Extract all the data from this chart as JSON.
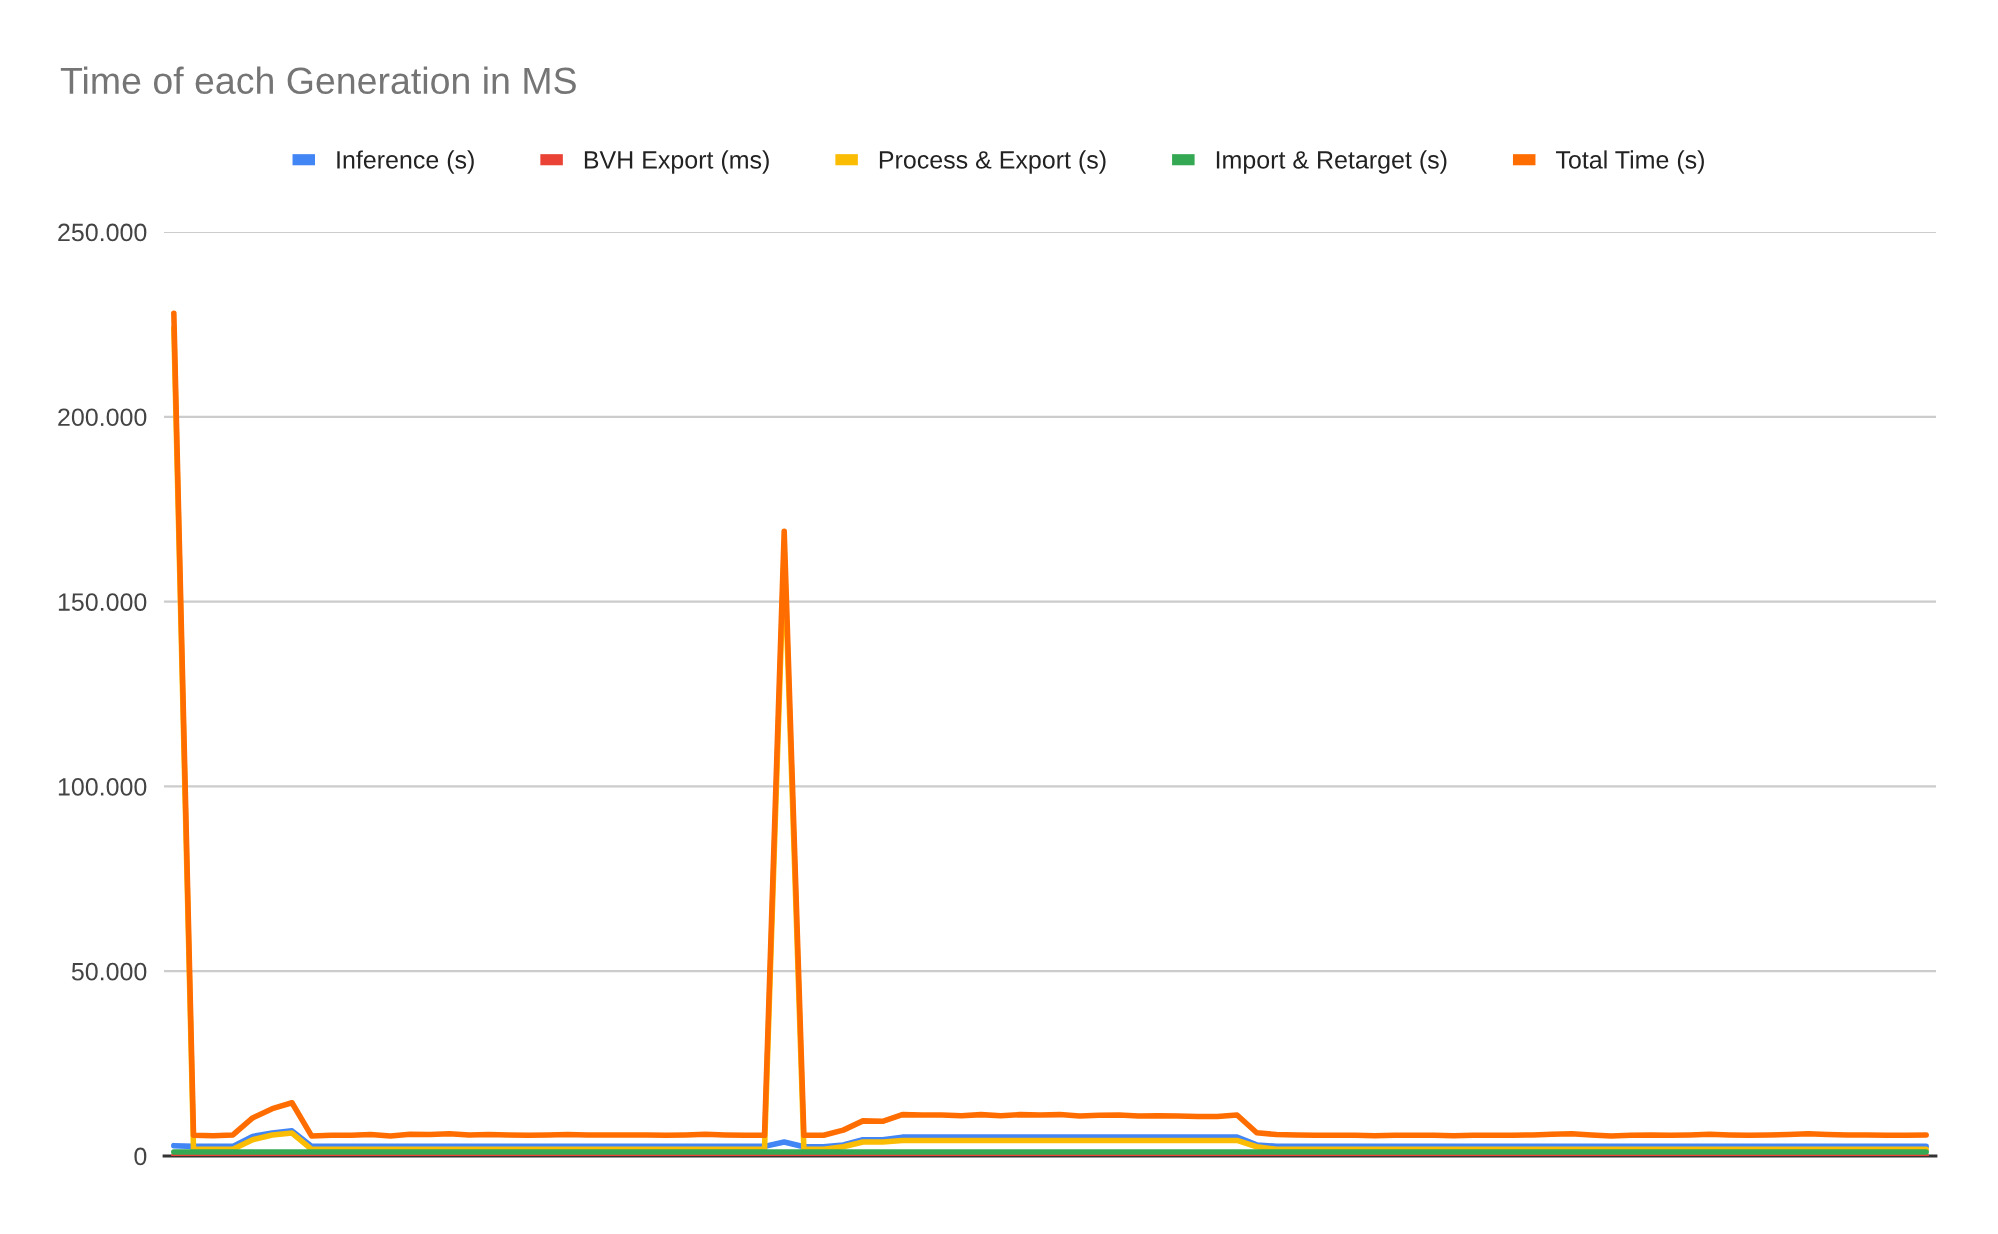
{
  "chart_data": {
    "type": "line",
    "title": "Time of each Generation in MS",
    "categories": [
      null,
      null,
      null,
      null,
      null,
      null,
      null,
      null,
      null,
      null,
      null,
      null,
      null,
      null,
      null,
      null,
      null,
      null,
      null,
      null,
      null,
      null,
      null,
      null,
      null,
      null,
      null,
      null,
      null,
      null,
      null,
      null,
      null,
      null,
      null,
      null,
      null,
      null,
      null,
      null,
      null,
      null,
      null,
      null,
      null,
      null,
      null,
      null,
      null,
      null,
      null,
      null,
      null,
      null,
      null,
      null,
      null,
      null,
      null,
      null,
      null,
      null,
      null,
      null,
      null,
      null,
      null,
      null,
      null,
      null,
      null,
      null,
      null,
      null,
      null,
      null,
      null,
      null,
      null,
      null,
      null,
      null,
      null,
      null,
      null,
      null,
      null,
      null,
      null,
      null
    ],
    "series": [
      {
        "name": "Inference (s)",
        "color": "#4285f4",
        "values": [
          2800,
          2600,
          2600,
          2600,
          5300,
          6200,
          6800,
          2600,
          2600,
          2600,
          2600,
          2600,
          2600,
          2600,
          2600,
          2600,
          2600,
          2600,
          2600,
          2600,
          2600,
          2600,
          2600,
          2600,
          2600,
          2600,
          2600,
          2600,
          2600,
          2600,
          2600,
          3800,
          2500,
          2500,
          3000,
          4400,
          4400,
          5100,
          5100,
          5100,
          5100,
          5100,
          5100,
          5100,
          5100,
          5100,
          5100,
          5100,
          5100,
          5100,
          5100,
          5100,
          5100,
          5100,
          5100,
          3000,
          2600,
          2600,
          2600,
          2600,
          2600,
          2600,
          2600,
          2600,
          2600,
          2600,
          2600,
          2600,
          2600,
          2600,
          2600,
          2600,
          2600,
          2600,
          2600,
          2600,
          2600,
          2600,
          2600,
          2600,
          2600,
          2600,
          2600,
          2600,
          2600,
          2600,
          2600,
          2600,
          2600,
          2600
        ]
      },
      {
        "name": "BVH Export (ms)",
        "color": "#ea4335",
        "values": [
          0,
          0,
          0,
          0,
          0,
          0,
          0,
          0,
          0,
          0,
          0,
          0,
          0,
          0,
          0,
          0,
          0,
          0,
          0,
          0,
          0,
          0,
          0,
          0,
          0,
          0,
          0,
          0,
          0,
          0,
          0,
          0,
          0,
          0,
          0,
          0,
          0,
          0,
          0,
          0,
          0,
          0,
          0,
          0,
          0,
          0,
          0,
          0,
          0,
          0,
          0,
          0,
          0,
          0,
          0,
          0,
          0,
          0,
          0,
          0,
          0,
          0,
          0,
          0,
          0,
          0,
          0,
          0,
          0,
          0,
          0,
          0,
          0,
          0,
          0,
          0,
          0,
          0,
          0,
          0,
          0,
          0,
          0,
          0,
          0,
          0,
          0,
          0,
          0,
          0
        ]
      },
      {
        "name": "Process & Export (s)",
        "color": "#fbbc04",
        "values": [
          224000,
          1800,
          1800,
          1800,
          4400,
          5700,
          6200,
          1800,
          1800,
          1800,
          1800,
          1800,
          1800,
          1800,
          1800,
          1800,
          1800,
          1800,
          1800,
          1800,
          1800,
          1800,
          1800,
          1800,
          1800,
          1800,
          1800,
          1800,
          1800,
          1800,
          1800,
          164000,
          1800,
          1800,
          2500,
          3800,
          3800,
          4200,
          4200,
          4200,
          4200,
          4200,
          4200,
          4200,
          4200,
          4200,
          4200,
          4200,
          4200,
          4200,
          4200,
          4200,
          4200,
          4200,
          4200,
          2500,
          1800,
          1800,
          1800,
          1800,
          1800,
          1800,
          1800,
          1800,
          1800,
          1800,
          1800,
          1800,
          1800,
          1800,
          1800,
          1800,
          1800,
          1800,
          1800,
          1800,
          1800,
          1800,
          1800,
          1800,
          1800,
          1800,
          1800,
          1800,
          1800,
          1800,
          1800,
          1800,
          1800,
          1800
        ]
      },
      {
        "name": "Import & Retarget (s)",
        "color": "#34a853",
        "values": [
          1100,
          1100,
          1100,
          1100,
          1100,
          1100,
          1100,
          1100,
          1100,
          1100,
          1100,
          1100,
          1100,
          1100,
          1100,
          1100,
          1100,
          1100,
          1100,
          1100,
          1100,
          1100,
          1100,
          1100,
          1100,
          1100,
          1100,
          1100,
          1100,
          1100,
          1100,
          1100,
          1100,
          1100,
          1100,
          1100,
          1100,
          1100,
          1100,
          1100,
          1100,
          1100,
          1100,
          1100,
          1100,
          1100,
          1100,
          1100,
          1100,
          1100,
          1100,
          1100,
          1100,
          1100,
          1100,
          1100,
          1100,
          1100,
          1100,
          1100,
          1100,
          1100,
          1100,
          1100,
          1100,
          1100,
          1100,
          1100,
          1100,
          1100,
          1100,
          1100,
          1100,
          1100,
          1100,
          1100,
          1100,
          1100,
          1100,
          1100,
          1100,
          1100,
          1100,
          1100,
          1100,
          1100,
          1100,
          1100,
          1100,
          1100
        ]
      },
      {
        "name": "Total Time (s)",
        "color": "#ff6d01",
        "values": [
          228000,
          5600,
          5500,
          5700,
          10300,
          12800,
          14400,
          5400,
          5600,
          5600,
          5800,
          5400,
          5900,
          5800,
          6000,
          5700,
          5800,
          5700,
          5600,
          5700,
          5800,
          5700,
          5700,
          5700,
          5700,
          5600,
          5700,
          5900,
          5700,
          5600,
          5600,
          169000,
          5600,
          5600,
          7000,
          9500,
          9400,
          11200,
          11100,
          11100,
          10900,
          11200,
          10900,
          11200,
          11100,
          11200,
          10800,
          11000,
          11100,
          10800,
          10900,
          10800,
          10700,
          10700,
          11100,
          6300,
          5800,
          5700,
          5600,
          5600,
          5600,
          5500,
          5600,
          5600,
          5600,
          5500,
          5600,
          5600,
          5600,
          5700,
          5900,
          6000,
          5700,
          5400,
          5600,
          5700,
          5600,
          5700,
          5900,
          5700,
          5600,
          5700,
          5800,
          6000,
          5800,
          5700,
          5700,
          5600,
          5600,
          5700
        ]
      }
    ],
    "ylim": [
      0,
      250000
    ],
    "yticks": [
      0,
      {
        "value": 50000,
        "label": "50.000"
      },
      {
        "value": 100000,
        "label": "100.000"
      },
      {
        "value": 150000,
        "label": "150.000"
      },
      {
        "value": 200000,
        "label": "200.000"
      },
      {
        "value": 250000,
        "label": "250.000"
      }
    ],
    "grid": "y",
    "legend": "top",
    "tick_labels": "y"
  }
}
